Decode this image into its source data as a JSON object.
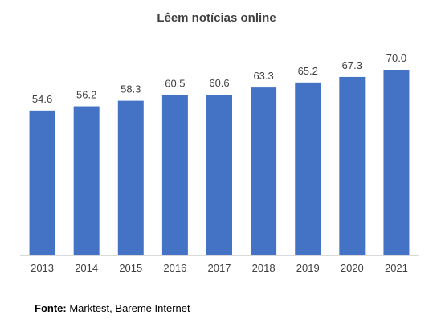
{
  "chart_data": {
    "type": "bar",
    "title": "Lêem notícias online",
    "categories": [
      "2013",
      "2014",
      "2015",
      "2016",
      "2017",
      "2018",
      "2019",
      "2020",
      "2021"
    ],
    "values": [
      54.6,
      56.2,
      58.3,
      60.5,
      60.6,
      63.3,
      65.2,
      67.3,
      70.0
    ],
    "value_labels": [
      "54.6",
      "56.2",
      "58.3",
      "60.5",
      "60.6",
      "63.3",
      "65.2",
      "67.3",
      "70.0"
    ],
    "xlabel": "",
    "ylabel": "",
    "ylim": [
      0,
      70
    ],
    "grid": false,
    "legend": "none",
    "bar_color": "#4472C4"
  },
  "source": {
    "label": "Fonte:",
    "text": " Marktest, Bareme Internet"
  }
}
